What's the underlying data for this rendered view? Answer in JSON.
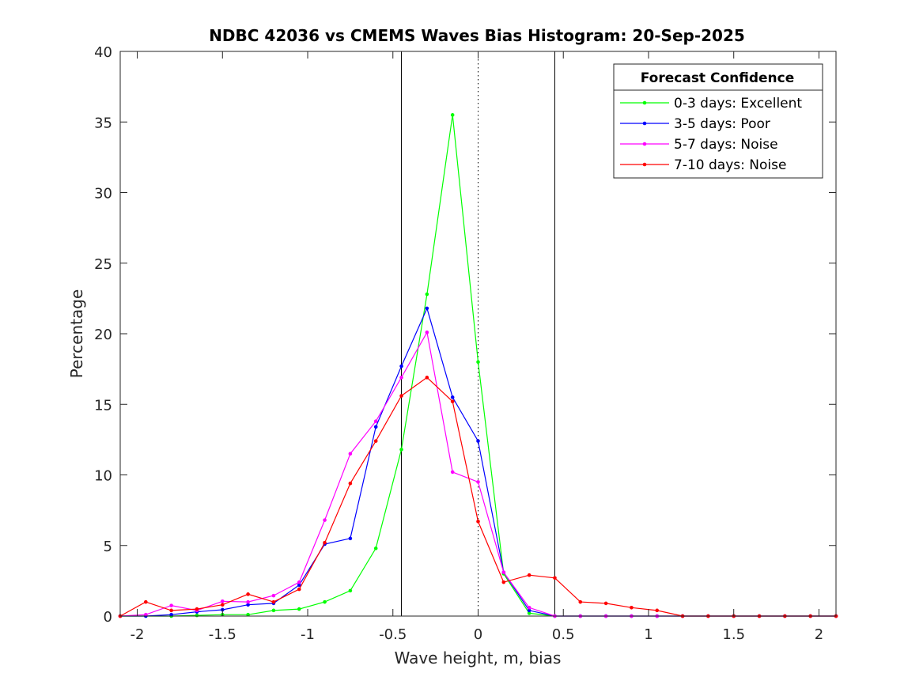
{
  "chart_data": {
    "type": "line",
    "title": "NDBC 42036 vs CMEMS Waves Bias Histogram: 20-Sep-2025",
    "xlabel": "Wave height, m, bias",
    "ylabel": "Percentage",
    "xlim": [
      -2.1,
      2.1
    ],
    "ylim": [
      0,
      40
    ],
    "xticks": [
      -2,
      -1.5,
      -1,
      -0.5,
      0,
      0.5,
      1,
      1.5,
      2
    ],
    "xtick_labels": [
      "-2",
      "-1.5",
      "-1",
      "-0.5",
      "0",
      "0.5",
      "1",
      "1.5",
      "2"
    ],
    "yticks": [
      0,
      5,
      10,
      15,
      20,
      25,
      30,
      35,
      40
    ],
    "ytick_labels": [
      "0",
      "5",
      "10",
      "15",
      "20",
      "25",
      "30",
      "35",
      "40"
    ],
    "vertical_lines": [
      {
        "x": -0.45,
        "style": "solid"
      },
      {
        "x": 0,
        "style": "dotted"
      },
      {
        "x": 0.45,
        "style": "solid"
      }
    ],
    "legend_title": "Forecast Confidence",
    "legend_location": "top-right",
    "x": [
      -2.1,
      -1.95,
      -1.8,
      -1.65,
      -1.5,
      -1.35,
      -1.2,
      -1.05,
      -0.9,
      -0.75,
      -0.6,
      -0.45,
      -0.3,
      -0.15,
      0,
      0.15,
      0.3,
      0.45,
      0.6,
      0.75,
      0.9,
      1.05,
      1.2,
      1.35,
      1.5,
      1.65,
      1.8,
      1.95,
      2.1
    ],
    "series": [
      {
        "name": "0-3 days: Excellent",
        "color": "#00ff00",
        "values": [
          0,
          0,
          0,
          0.05,
          0.1,
          0.1,
          0.4,
          0.5,
          1.0,
          1.8,
          4.8,
          11.8,
          22.8,
          35.5,
          18.0,
          3.0,
          0.2,
          0,
          0,
          0,
          0,
          0,
          0,
          0,
          0,
          0,
          0,
          0,
          0
        ]
      },
      {
        "name": "3-5 days: Poor",
        "color": "#0000ff",
        "values": [
          0,
          0,
          0.1,
          0.3,
          0.45,
          0.8,
          0.9,
          2.2,
          5.1,
          5.5,
          13.4,
          17.7,
          21.8,
          15.5,
          12.4,
          3.1,
          0.4,
          0,
          0,
          0,
          0,
          0,
          0,
          0,
          0,
          0,
          0,
          0,
          0
        ]
      },
      {
        "name": "5-7 days: Noise",
        "color": "#ff00ff",
        "values": [
          0,
          0.1,
          0.75,
          0.4,
          1.05,
          1.0,
          1.45,
          2.4,
          6.8,
          11.5,
          13.8,
          16.9,
          20.1,
          10.2,
          9.5,
          3.1,
          0.6,
          0,
          0,
          0,
          0,
          0,
          0,
          0,
          0,
          0,
          0,
          0,
          0
        ]
      },
      {
        "name": "7-10 days: Noise",
        "color": "#ff0000",
        "values": [
          0,
          1.0,
          0.4,
          0.5,
          0.8,
          1.55,
          1.0,
          1.9,
          5.2,
          9.4,
          12.4,
          15.6,
          16.9,
          15.2,
          6.7,
          2.4,
          2.9,
          2.7,
          1.0,
          0.9,
          0.6,
          0.4,
          0,
          0,
          0,
          0,
          0,
          0,
          0
        ]
      }
    ]
  }
}
